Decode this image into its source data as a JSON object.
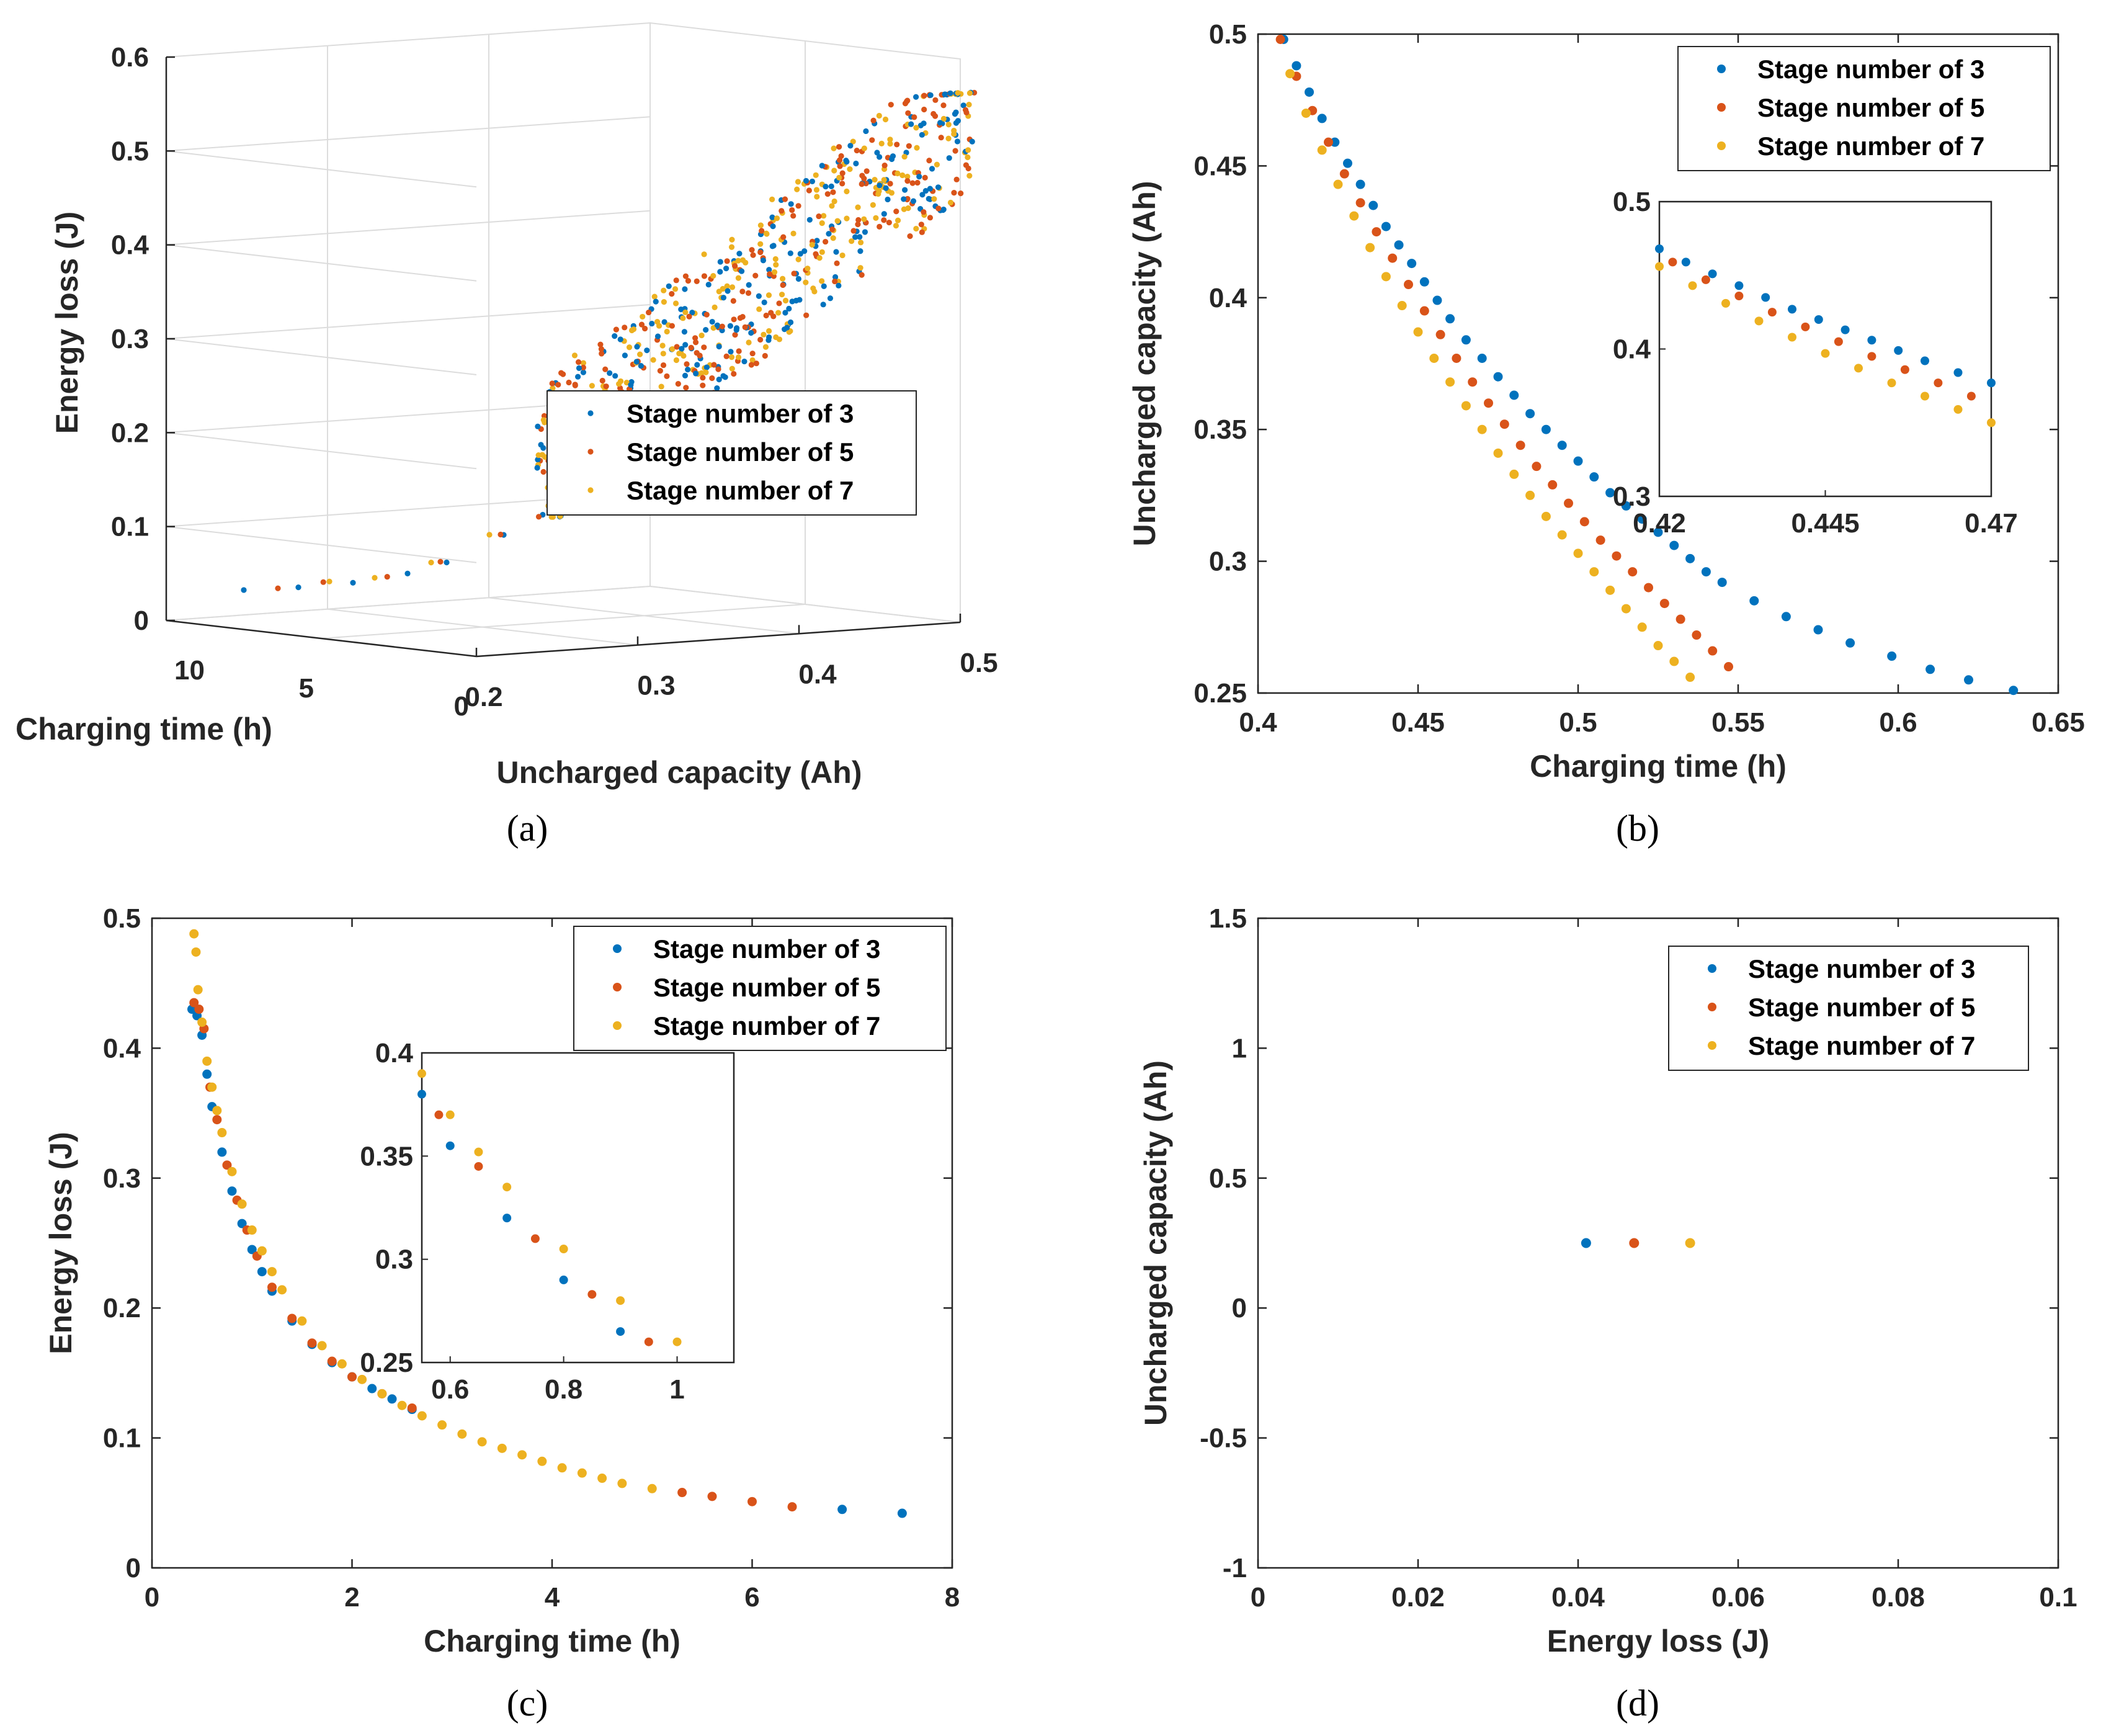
{
  "figure": {
    "series_names": [
      "Stage number of 3",
      "Stage number of 5",
      "Stage number of 7"
    ],
    "colors": [
      "#0072BD",
      "#D95319",
      "#EDB120"
    ],
    "captions": [
      "(a)",
      "(b)",
      "(c)",
      "(d)"
    ]
  },
  "chart_data": [
    {
      "panel": "a",
      "type": "scatter",
      "projection": "3d",
      "xlabel": "Charging time (h)",
      "ylabel": "Uncharged capacity (Ah)",
      "zlabel": "Energy loss (J)",
      "xlim": [
        0,
        10
      ],
      "ylim": [
        0.2,
        0.5
      ],
      "zlim": [
        0,
        0.6
      ],
      "xticks": [
        "0",
        "5",
        "10"
      ],
      "yticks": [
        "0.2",
        "0.3",
        "0.4",
        "0.5"
      ],
      "zticks": [
        "0",
        "0.1",
        "0.2",
        "0.3",
        "0.4",
        "0.5",
        "0.6"
      ],
      "legend": [
        "Stage number of 3",
        "Stage number of 5",
        "Stage number of 7"
      ],
      "series": [
        {
          "name": "Stage number of 3",
          "points": [
            [
              0.45,
              0.45,
              0.43
            ],
            [
              0.5,
              0.38,
              0.33
            ],
            [
              0.6,
              0.3,
              0.22
            ],
            [
              0.8,
              0.26,
              0.15
            ],
            [
              1.2,
              0.24,
              0.12
            ],
            [
              2.0,
              0.22,
              0.09
            ],
            [
              3.0,
              0.215,
              0.075
            ],
            [
              4.5,
              0.21,
              0.06
            ],
            [
              6.0,
              0.205,
              0.05
            ],
            [
              7.5,
              0.2,
              0.042
            ],
            [
              0.5,
              0.4,
              0.37
            ],
            [
              0.5,
              0.46,
              0.47
            ],
            [
              0.6,
              0.43,
              0.42
            ],
            [
              0.7,
              0.48,
              0.5
            ],
            [
              0.55,
              0.34,
              0.28
            ]
          ]
        },
        {
          "name": "Stage number of 5",
          "points": [
            [
              0.44,
              0.45,
              0.43
            ],
            [
              0.5,
              0.37,
              0.32
            ],
            [
              0.6,
              0.3,
              0.21
            ],
            [
              0.8,
              0.26,
              0.15
            ],
            [
              1.3,
              0.24,
              0.12
            ],
            [
              2.2,
              0.22,
              0.09
            ],
            [
              3.5,
              0.212,
              0.07
            ],
            [
              5.3,
              0.207,
              0.058
            ],
            [
              6.4,
              0.2,
              0.048
            ],
            [
              0.5,
              0.42,
              0.4
            ],
            [
              0.55,
              0.47,
              0.48
            ],
            [
              0.6,
              0.35,
              0.3
            ]
          ]
        },
        {
          "name": "Stage number of 7",
          "points": [
            [
              0.42,
              0.48,
              0.48
            ],
            [
              0.5,
              0.36,
              0.31
            ],
            [
              0.6,
              0.29,
              0.2
            ],
            [
              0.8,
              0.26,
              0.15
            ],
            [
              1.4,
              0.235,
              0.12
            ],
            [
              2.5,
              0.22,
              0.088
            ],
            [
              3.8,
              0.21,
              0.068
            ],
            [
              5.0,
              0.205,
              0.06
            ],
            [
              0.5,
              0.43,
              0.45
            ],
            [
              0.6,
              0.49,
              0.52
            ],
            [
              0.45,
              0.39,
              0.36
            ]
          ]
        }
      ]
    },
    {
      "panel": "b",
      "type": "scatter",
      "xlabel": "Charging time (h)",
      "ylabel": "Uncharged capacity (Ah)",
      "xlim": [
        0.4,
        0.65
      ],
      "ylim": [
        0.25,
        0.5
      ],
      "xticks": [
        "0.4",
        "0.45",
        "0.5",
        "0.55",
        "0.6",
        "0.65"
      ],
      "yticks": [
        "0.25",
        "0.3",
        "0.35",
        "0.4",
        "0.45",
        "0.5"
      ],
      "legend": [
        "Stage number of 3",
        "Stage number of 5",
        "Stage number of 7"
      ],
      "series": [
        {
          "name": "Stage number of 3",
          "x": [
            0.408,
            0.412,
            0.416,
            0.42,
            0.424,
            0.428,
            0.432,
            0.436,
            0.44,
            0.444,
            0.448,
            0.452,
            0.456,
            0.46,
            0.465,
            0.47,
            0.475,
            0.48,
            0.485,
            0.49,
            0.495,
            0.5,
            0.505,
            0.51,
            0.515,
            0.52,
            0.525,
            0.53,
            0.535,
            0.54,
            0.545,
            0.555,
            0.565,
            0.575,
            0.585,
            0.598,
            0.61,
            0.622,
            0.636
          ],
          "y": [
            0.498,
            0.488,
            0.478,
            0.468,
            0.459,
            0.451,
            0.443,
            0.435,
            0.427,
            0.42,
            0.413,
            0.406,
            0.399,
            0.392,
            0.384,
            0.377,
            0.37,
            0.363,
            0.356,
            0.35,
            0.344,
            0.338,
            0.332,
            0.326,
            0.321,
            0.316,
            0.311,
            0.306,
            0.301,
            0.296,
            0.292,
            0.285,
            0.279,
            0.274,
            0.269,
            0.264,
            0.259,
            0.255,
            0.251
          ]
        },
        {
          "name": "Stage number of 5",
          "x": [
            0.407,
            0.412,
            0.417,
            0.422,
            0.427,
            0.432,
            0.437,
            0.442,
            0.447,
            0.452,
            0.457,
            0.462,
            0.467,
            0.472,
            0.477,
            0.482,
            0.487,
            0.492,
            0.497,
            0.502,
            0.507,
            0.512,
            0.517,
            0.522,
            0.527,
            0.532,
            0.537,
            0.542,
            0.547
          ],
          "y": [
            0.498,
            0.484,
            0.471,
            0.459,
            0.447,
            0.436,
            0.425,
            0.415,
            0.405,
            0.395,
            0.386,
            0.377,
            0.368,
            0.36,
            0.352,
            0.344,
            0.336,
            0.329,
            0.322,
            0.315,
            0.308,
            0.302,
            0.296,
            0.29,
            0.284,
            0.278,
            0.272,
            0.266,
            0.26
          ]
        },
        {
          "name": "Stage number of 7",
          "x": [
            0.41,
            0.415,
            0.42,
            0.425,
            0.43,
            0.435,
            0.44,
            0.445,
            0.45,
            0.455,
            0.46,
            0.465,
            0.47,
            0.475,
            0.48,
            0.485,
            0.49,
            0.495,
            0.5,
            0.505,
            0.51,
            0.515,
            0.52,
            0.525,
            0.53,
            0.535
          ],
          "y": [
            0.485,
            0.47,
            0.456,
            0.443,
            0.431,
            0.419,
            0.408,
            0.397,
            0.387,
            0.377,
            0.368,
            0.359,
            0.35,
            0.341,
            0.333,
            0.325,
            0.317,
            0.31,
            0.303,
            0.296,
            0.289,
            0.282,
            0.275,
            0.268,
            0.262,
            0.256
          ]
        }
      ],
      "inset": {
        "xlim": [
          0.42,
          0.47
        ],
        "ylim": [
          0.3,
          0.5
        ],
        "xticks": [
          "0.42",
          "0.445",
          "0.47"
        ],
        "yticks": [
          "0.3",
          "0.4",
          "0.5"
        ]
      }
    },
    {
      "panel": "c",
      "type": "scatter",
      "xlabel": "Charging time (h)",
      "ylabel": "Energy loss (J)",
      "xlim": [
        0,
        8
      ],
      "ylim": [
        0,
        0.5
      ],
      "xticks": [
        "0",
        "2",
        "4",
        "6",
        "8"
      ],
      "yticks": [
        "0",
        "0.1",
        "0.2",
        "0.3",
        "0.4",
        "0.5"
      ],
      "legend": [
        "Stage number of 3",
        "Stage number of 5",
        "Stage number of 7"
      ],
      "series": [
        {
          "name": "Stage number of 3",
          "x": [
            0.4,
            0.45,
            0.5,
            0.55,
            0.6,
            0.7,
            0.8,
            0.9,
            1.0,
            1.1,
            1.2,
            1.4,
            1.6,
            1.8,
            2.0,
            2.2,
            2.4,
            2.6,
            6.9,
            7.5
          ],
          "y": [
            0.43,
            0.425,
            0.41,
            0.38,
            0.355,
            0.32,
            0.29,
            0.265,
            0.245,
            0.228,
            0.213,
            0.19,
            0.172,
            0.158,
            0.147,
            0.138,
            0.13,
            0.122,
            0.045,
            0.042
          ]
        },
        {
          "name": "Stage number of 5",
          "x": [
            0.42,
            0.47,
            0.52,
            0.58,
            0.65,
            0.75,
            0.85,
            0.95,
            1.05,
            1.2,
            1.4,
            1.6,
            1.8,
            2.0,
            2.3,
            2.6,
            5.3,
            5.6,
            6.0,
            6.4
          ],
          "y": [
            0.435,
            0.43,
            0.415,
            0.37,
            0.345,
            0.31,
            0.283,
            0.26,
            0.24,
            0.216,
            0.192,
            0.173,
            0.159,
            0.147,
            0.134,
            0.123,
            0.058,
            0.055,
            0.051,
            0.047
          ]
        },
        {
          "name": "Stage number of 7",
          "x": [
            0.42,
            0.44,
            0.46,
            0.5,
            0.55,
            0.6,
            0.65,
            0.7,
            0.8,
            0.9,
            1.0,
            1.1,
            1.2,
            1.3,
            1.5,
            1.7,
            1.9,
            2.1,
            2.3,
            2.5,
            2.7,
            2.9,
            3.1,
            3.3,
            3.5,
            3.7,
            3.9,
            4.1,
            4.3,
            4.5,
            4.7,
            5.0
          ],
          "y": [
            0.488,
            0.474,
            0.445,
            0.42,
            0.39,
            0.37,
            0.352,
            0.335,
            0.305,
            0.28,
            0.26,
            0.244,
            0.228,
            0.214,
            0.19,
            0.171,
            0.157,
            0.145,
            0.134,
            0.125,
            0.117,
            0.11,
            0.103,
            0.097,
            0.092,
            0.087,
            0.082,
            0.077,
            0.073,
            0.069,
            0.065,
            0.061
          ]
        }
      ],
      "inset": {
        "xlim": [
          0.55,
          1.1
        ],
        "ylim": [
          0.25,
          0.4
        ],
        "xticks": [
          "0.6",
          "0.8",
          "1"
        ],
        "yticks": [
          "0.25",
          "0.3",
          "0.35",
          "0.4"
        ]
      }
    },
    {
      "panel": "d",
      "type": "scatter",
      "xlabel": "Energy loss (J)",
      "ylabel": "Uncharged capacity (Ah)",
      "xlim": [
        0,
        0.1
      ],
      "ylim": [
        -1,
        1.5
      ],
      "xticks": [
        "0",
        "0.02",
        "0.04",
        "0.06",
        "0.08",
        "0.1"
      ],
      "yticks": [
        "-1",
        "-0.5",
        "0",
        "0.5",
        "1",
        "1.5"
      ],
      "legend": [
        "Stage number of 3",
        "Stage number of 5",
        "Stage number of 7"
      ],
      "series": [
        {
          "name": "Stage number of 3",
          "x": [
            0.041
          ],
          "y": [
            0.25
          ]
        },
        {
          "name": "Stage number of 5",
          "x": [
            0.047
          ],
          "y": [
            0.25
          ]
        },
        {
          "name": "Stage number of 7",
          "x": [
            0.054
          ],
          "y": [
            0.25
          ]
        }
      ]
    }
  ]
}
